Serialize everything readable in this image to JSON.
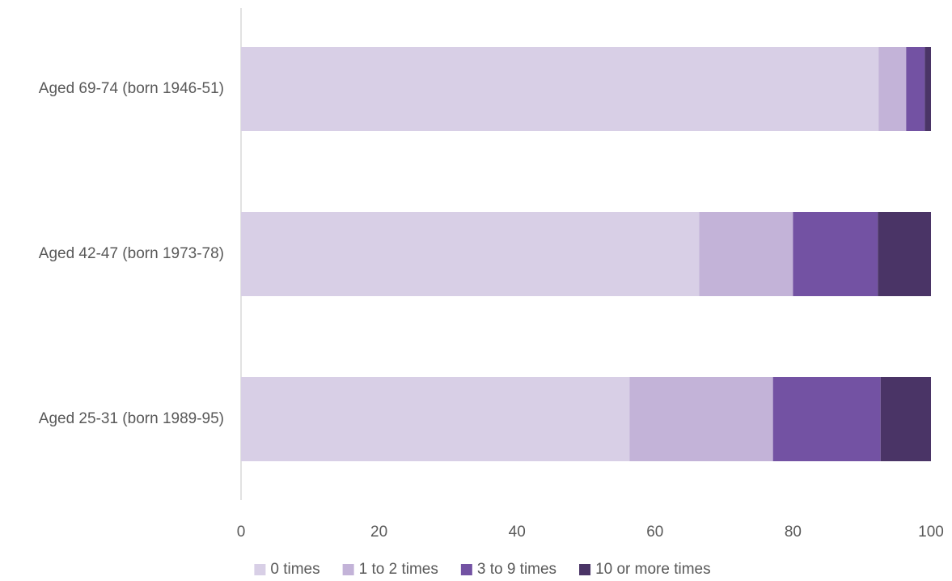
{
  "chart_data": {
    "type": "bar",
    "orientation": "horizontal",
    "stacked": true,
    "categories": [
      "Aged 69-74 (born 1946-51)",
      "Aged 42-47 (born 1973-78)",
      "Aged 25-31 (born 1989-95)"
    ],
    "series": [
      {
        "name": "0 times",
        "color": "#d8cfe6",
        "values": [
          92.4,
          66.4,
          56.3
        ]
      },
      {
        "name": "1 to 2 times",
        "color": "#c3b3d8",
        "values": [
          4.0,
          13.6,
          20.8
        ]
      },
      {
        "name": "3 to 9 times",
        "color": "#7352a3",
        "values": [
          2.7,
          12.3,
          15.6
        ]
      },
      {
        "name": "10 or more times",
        "color": "#4a3466",
        "values": [
          0.9,
          7.7,
          7.3
        ]
      }
    ],
    "xlim": [
      0,
      100
    ],
    "x_ticks": [
      0,
      20,
      40,
      60,
      80,
      100
    ],
    "x_tick_labels": [
      "0",
      "20",
      "40",
      "60",
      "80",
      "100"
    ],
    "title": "",
    "xlabel": "",
    "ylabel": "",
    "grid": false,
    "legend_position": "bottom"
  }
}
